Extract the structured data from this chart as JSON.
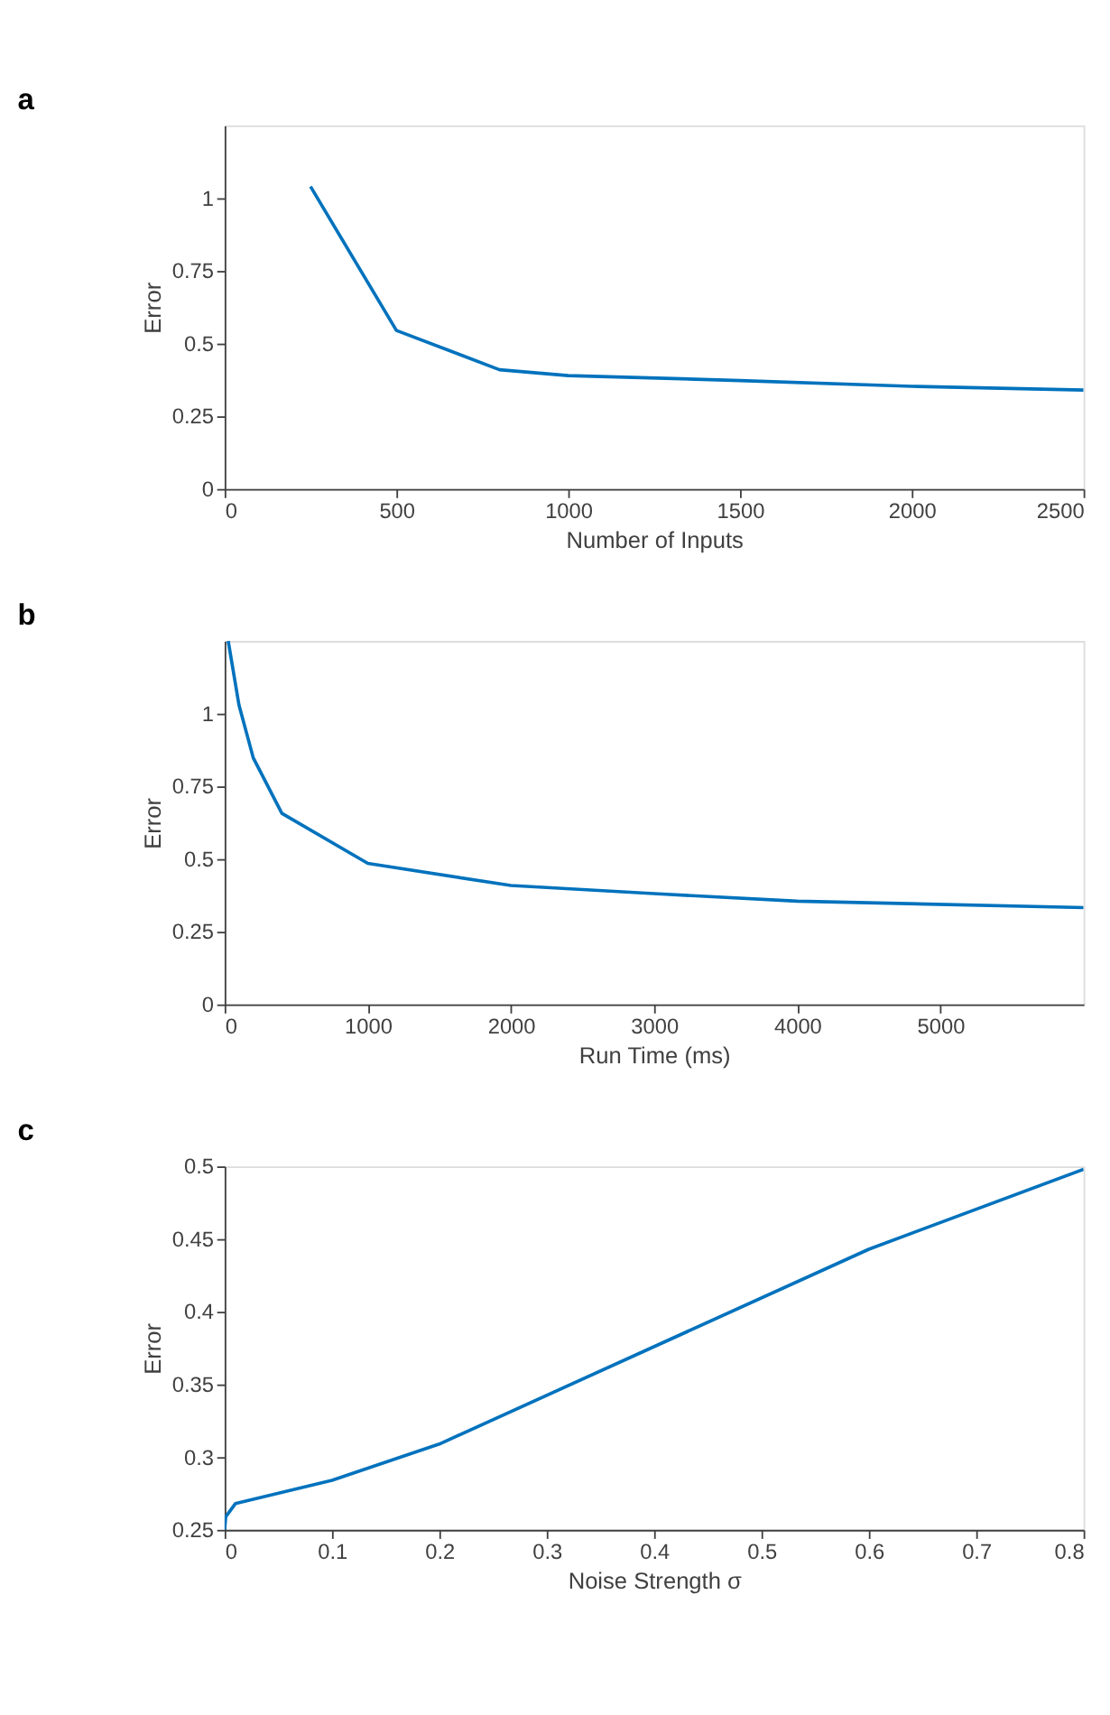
{
  "chart_data": [
    {
      "type": "line",
      "title": "a",
      "xlabel": "Number of Inputs",
      "ylabel": "Error",
      "x": [
        250,
        500,
        800,
        1000,
        1500,
        2000,
        2500
      ],
      "series": [
        {
          "color": "#0072bd",
          "values": [
            1.04,
            0.545,
            0.41,
            0.39,
            0.373,
            0.353,
            0.34
          ]
        }
      ],
      "xlim": [
        0,
        2500
      ],
      "xticks": [
        0,
        500,
        1000,
        1500,
        2000,
        2500
      ],
      "ylim": [
        0,
        1.25
      ],
      "yticks": [
        0,
        0.25,
        0.5,
        0.75,
        1
      ],
      "grid": false,
      "marker": "none",
      "line_style": "solid"
    },
    {
      "type": "line",
      "title": "b",
      "xlabel": "Run Time (ms)",
      "ylabel": "Error",
      "x": [
        25,
        100,
        200,
        400,
        1000,
        2000,
        3000,
        4000,
        6000
      ],
      "series": [
        {
          "color": "#0072bd",
          "values": [
            1.25,
            1.03,
            0.848,
            0.657,
            0.485,
            0.409,
            0.381,
            0.355,
            0.333
          ]
        }
      ],
      "xlim": [
        0,
        6000
      ],
      "xticks": [
        0,
        1000,
        2000,
        3000,
        4000,
        5000
      ],
      "ylim": [
        0,
        1.25
      ],
      "yticks": [
        0,
        0.25,
        0.5,
        0.75,
        1
      ],
      "grid": false,
      "marker": "none",
      "line_style": "solid"
    },
    {
      "type": "line",
      "title": "c",
      "xlabel": "Noise Strength  σ",
      "ylabel": "Error",
      "x": [
        0,
        0.001,
        0.01,
        0.1,
        0.2,
        0.6,
        0.8
      ],
      "series": [
        {
          "color": "#0072bd",
          "values": [
            0.25,
            0.259,
            0.268,
            0.284,
            0.309,
            0.443,
            0.498
          ]
        }
      ],
      "xlim": [
        0,
        0.8
      ],
      "xticks": [
        0,
        0.1,
        0.2,
        0.3,
        0.4,
        0.5,
        0.6,
        0.7,
        0.8
      ],
      "ylim": [
        0.25,
        0.5
      ],
      "yticks": [
        0.25,
        0.3,
        0.35,
        0.4,
        0.45,
        0.5
      ],
      "grid": false,
      "marker": "none",
      "line_style": "solid"
    }
  ]
}
